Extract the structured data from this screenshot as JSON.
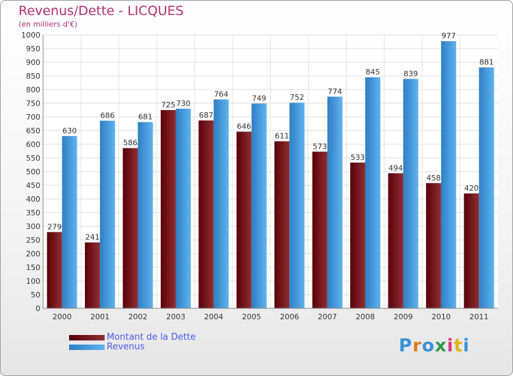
{
  "title": "Revenus/Dette - LICQUES",
  "subtitle": "(en milliers d'€)",
  "chart_data": {
    "type": "bar",
    "title": "Revenus/Dette - LICQUES",
    "ylabel": "(en milliers d'€)",
    "categories": [
      "2000",
      "2001",
      "2002",
      "2003",
      "2004",
      "2005",
      "2006",
      "2007",
      "2008",
      "2009",
      "2010",
      "2011"
    ],
    "ylim": [
      0,
      1000
    ],
    "ytick_step": 50,
    "grid": true,
    "legend_position": "bottom-left",
    "series": [
      {
        "name": "Montant de la Dette",
        "color": "#7a1a1e",
        "values": [
          279,
          241,
          586,
          725,
          687,
          646,
          611,
          573,
          533,
          494,
          458,
          420
        ]
      },
      {
        "name": "Revenus",
        "color": "#4aa3e6",
        "values": [
          630,
          686,
          681,
          730,
          764,
          749,
          752,
          774,
          845,
          839,
          977,
          881
        ]
      }
    ]
  },
  "legend": {
    "debt_label": "Montant de la Dette",
    "revenue_label": "Revenus"
  },
  "brand": {
    "text": "Proxiti",
    "letter_colors": [
      "#3a8fd8",
      "#e07a1a",
      "#3a8fd8",
      "#2e9a48",
      "#d83a7a",
      "#e0b41a"
    ]
  }
}
